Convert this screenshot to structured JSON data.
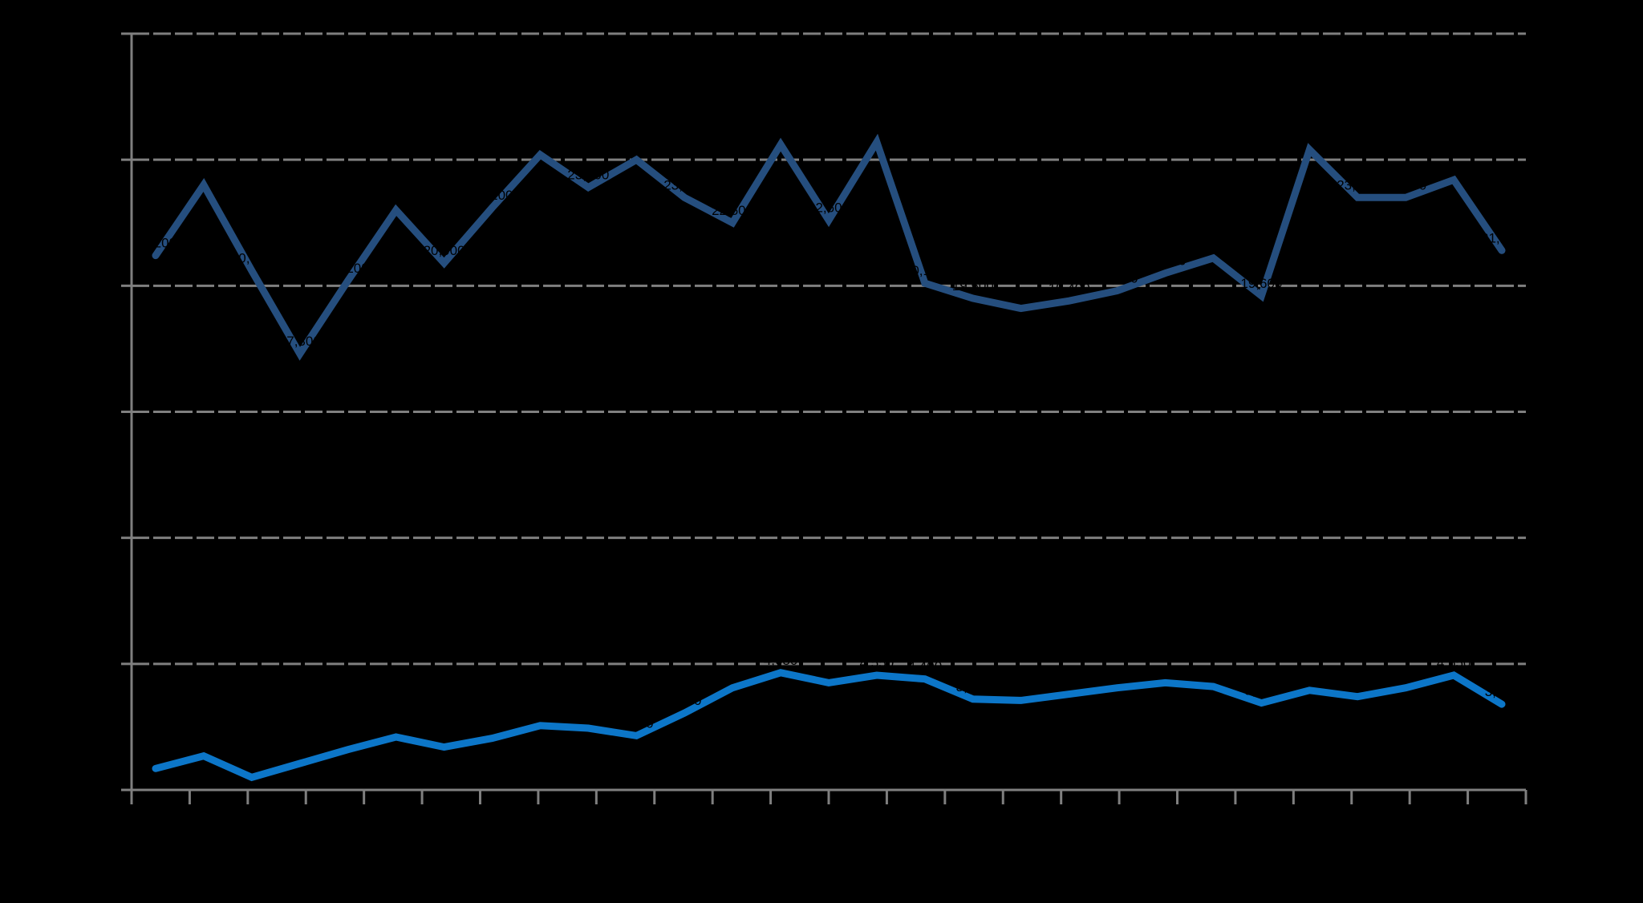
{
  "chart_data": {
    "type": "line",
    "title": "",
    "subtitle": "",
    "xlabel": "",
    "ylabel": "",
    "x_count": 29,
    "x_tick_count": 25,
    "ylim": [
      0,
      30000
    ],
    "ytick_step": 5000,
    "grid": "horizontal-dashed",
    "legend": "none",
    "background_color": "#000000",
    "axis_color": "#7F7F7F",
    "gridline_color": "#7F7F7F",
    "data_labels": {
      "visible": true,
      "color": "#000000",
      "format": "#,##0",
      "position": "above"
    },
    "series": [
      {
        "name": "series-dark-blue",
        "color": "#254E7E",
        "stroke_width": 9,
        "values": [
          21200,
          24000,
          20600,
          17300,
          20200,
          23000,
          20900,
          23100,
          25200,
          23900,
          25000,
          23500,
          22500,
          25600,
          22600,
          25700,
          20100,
          19500,
          19100,
          19400,
          19800,
          20500,
          21100,
          19600,
          25400,
          23500,
          23500,
          24200,
          21400
        ]
      },
      {
        "name": "series-light-blue",
        "color": "#0C76C8",
        "stroke_width": 9,
        "values": [
          850,
          1350,
          500,
          1050,
          1600,
          2100,
          1700,
          2050,
          2550,
          2450,
          2150,
          3050,
          4050,
          4650,
          4250,
          4550,
          4400,
          3600,
          3550,
          3800,
          4050,
          4250,
          4100,
          3450,
          3950,
          3700,
          4050,
          4550,
          3400
        ]
      }
    ]
  }
}
